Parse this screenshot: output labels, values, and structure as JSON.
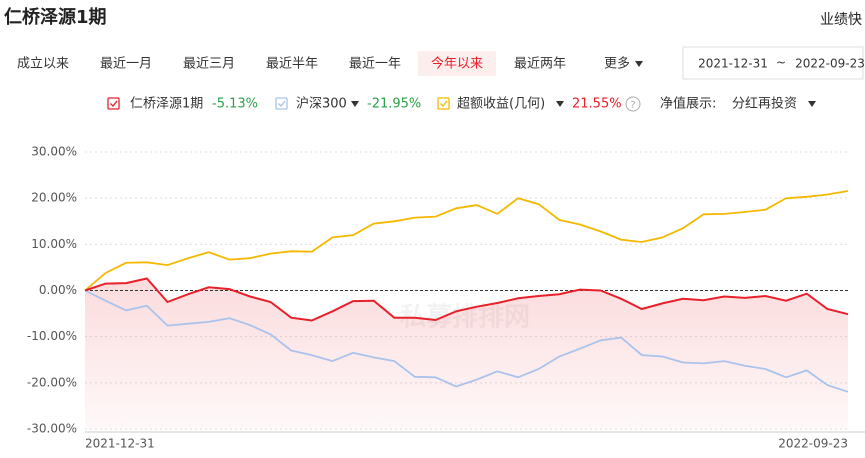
{
  "header": {
    "title": "仁桥泽源1期",
    "badge": "业绩快"
  },
  "tabs": {
    "items": [
      "成立以来",
      "最近一月",
      "最近三月",
      "最近半年",
      "最近一年",
      "今年以来",
      "最近两年"
    ],
    "active": 5,
    "more": "更多"
  },
  "date_range": {
    "start": "2021-12-31",
    "separator": "~",
    "end": "2022-09-23"
  },
  "display": {
    "label": "净值展示:",
    "value": "分红再投资"
  },
  "help_icon": "?",
  "chart_data": {
    "type": "line",
    "watermark": "私募排排网",
    "categories": [
      "2021-12-31",
      null,
      null,
      null,
      null,
      null,
      null,
      null,
      null,
      null,
      null,
      null,
      null,
      null,
      null,
      null,
      null,
      null,
      null,
      null,
      null,
      null,
      null,
      null,
      null,
      null,
      null,
      null,
      null,
      null,
      null,
      null,
      null,
      null,
      null,
      null,
      null,
      "2022-09-23"
    ],
    "series": [
      {
        "name": "仁桥泽源1期",
        "color": "#e8202a",
        "return_label": "-5.13%",
        "menu": false,
        "area": true,
        "values": [
          0,
          1.5,
          1.6,
          2.6,
          -2.5,
          -0.8,
          0.7,
          0.3,
          -1.3,
          -2.5,
          -5.9,
          -6.5,
          -4.5,
          -2.3,
          -2.2,
          -5.9,
          -5.9,
          -6.4,
          -4.5,
          -3.5,
          -2.7,
          -1.7,
          -1.2,
          -0.8,
          0.2,
          0,
          -1.8,
          -4,
          -2.8,
          -1.8,
          -2.1,
          -1.3,
          -1.6,
          -1.2,
          -2.2,
          -0.7,
          -4,
          -5.13
        ]
      },
      {
        "name": "沪深300",
        "color": "#a9c3ec",
        "return_label": "-21.95%",
        "menu": true,
        "area": false,
        "values": [
          0,
          -2.2,
          -4.3,
          -3.3,
          -7.6,
          -7.2,
          -6.8,
          -6,
          -7.5,
          -9.5,
          -13,
          -14,
          -15.3,
          -13.5,
          -14.5,
          -15.3,
          -18.7,
          -18.8,
          -20.8,
          -19.3,
          -17.5,
          -18.8,
          -17,
          -14.3,
          -12.6,
          -10.8,
          -10.2,
          -14,
          -14.3,
          -15.6,
          -15.8,
          -15.3,
          -16.3,
          -17,
          -18.8,
          -17.3,
          -20.5,
          -21.95
        ]
      },
      {
        "name": "超额收益(几何)",
        "color": "#f5b800",
        "return_label": "21.55%",
        "menu": true,
        "area": false,
        "values": [
          0,
          3.8,
          6,
          6.1,
          5.5,
          7,
          8.3,
          6.7,
          7,
          8,
          8.5,
          8.4,
          11.5,
          12,
          14.5,
          15,
          15.8,
          16,
          17.8,
          18.5,
          16.6,
          20,
          18.7,
          15.3,
          14.3,
          12.8,
          11,
          10.5,
          11.5,
          13.5,
          16.5,
          16.6,
          17,
          17.5,
          20,
          20.3,
          20.8,
          21.55
        ]
      }
    ],
    "ylim": [
      -30,
      30
    ],
    "yticks": [
      {
        "value": 30,
        "label": "30.00%"
      },
      {
        "value": 20,
        "label": "20.00%"
      },
      {
        "value": 10,
        "label": "10.00%"
      },
      {
        "value": 0,
        "label": "0.00%"
      },
      {
        "value": -10,
        "label": "-10.00%"
      },
      {
        "value": -20,
        "label": "-20.00%"
      },
      {
        "value": -30,
        "label": "-30.00%"
      }
    ],
    "grid": true,
    "zero_line": true
  }
}
